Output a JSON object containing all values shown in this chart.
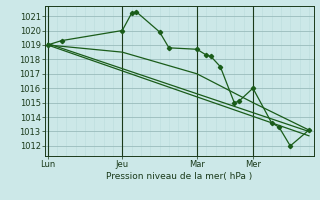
{
  "background_color": "#cce8e8",
  "grid_color_major": "#99bbbb",
  "grid_color_minor": "#bbdddd",
  "line_color": "#1a5c1a",
  "text_color": "#1a3a1a",
  "ylabel_ticks": [
    1012,
    1013,
    1014,
    1015,
    1016,
    1017,
    1018,
    1019,
    1020,
    1021
  ],
  "ylim": [
    1011.3,
    1021.7
  ],
  "xlabel": "Pression niveau de la mer( hPa )",
  "xtick_labels": [
    "Lun",
    "Jeu",
    "Mar",
    "Mer"
  ],
  "xtick_positions": [
    0,
    8,
    16,
    22
  ],
  "vline_positions": [
    0,
    8,
    16,
    22
  ],
  "xlim": [
    -0.3,
    28.5
  ],
  "series1_x": [
    0,
    1.5,
    8,
    9,
    9.5,
    12,
    13,
    16,
    17,
    17.5,
    18.5,
    20,
    20.5,
    22,
    24,
    24.8,
    26,
    28
  ],
  "series1_y": [
    1019.0,
    1019.3,
    1020.0,
    1021.2,
    1021.3,
    1019.9,
    1018.8,
    1018.7,
    1018.3,
    1018.2,
    1017.5,
    1015.0,
    1015.1,
    1016.0,
    1013.6,
    1013.3,
    1012.0,
    1013.1
  ],
  "series2_x": [
    0,
    28
  ],
  "series2_y": [
    1019.1,
    1013.0
  ],
  "series3_x": [
    0,
    28
  ],
  "series3_y": [
    1019.0,
    1012.7
  ],
  "series4_x": [
    0,
    8,
    16,
    22,
    28
  ],
  "series4_y": [
    1019.0,
    1018.5,
    1017.0,
    1015.0,
    1013.1
  ],
  "total_x": 28
}
